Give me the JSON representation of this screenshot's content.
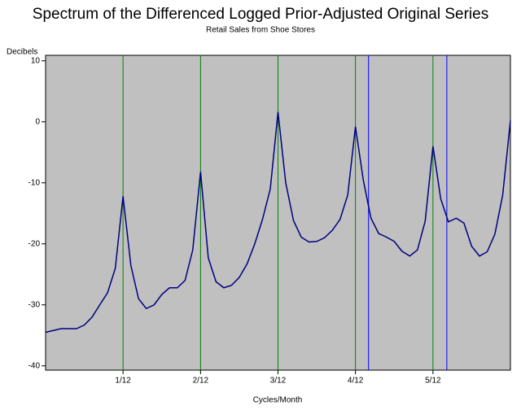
{
  "chart_data": {
    "type": "line",
    "title": "Spectrum of the Differenced Logged Prior-Adjusted Original Series",
    "subtitle": "Retail Sales from Shoe Stores",
    "y_label": "Decibels",
    "x_label": "Cycles/Month",
    "x": [
      0,
      0.0083,
      0.0167,
      0.025,
      0.0333,
      0.0417,
      0.05,
      0.0583,
      0.0667,
      0.075,
      0.0833,
      0.0917,
      0.1,
      0.1083,
      0.1167,
      0.125,
      0.1333,
      0.1417,
      0.15,
      0.1583,
      0.1667,
      0.175,
      0.1833,
      0.1917,
      0.2,
      0.2083,
      0.2167,
      0.225,
      0.2333,
      0.2417,
      0.25,
      0.2583,
      0.2667,
      0.275,
      0.2833,
      0.2917,
      0.3,
      0.3083,
      0.3167,
      0.325,
      0.3333,
      0.3417,
      0.35,
      0.3583,
      0.3667,
      0.375,
      0.3833,
      0.3917,
      0.4,
      0.4083,
      0.4167,
      0.425,
      0.4333,
      0.4417,
      0.45,
      0.4583,
      0.4667,
      0.475,
      0.4833,
      0.4917,
      0.5
    ],
    "series": [
      {
        "color": "#000080",
        "values": [
          -34.5,
          -34.2,
          -33.9,
          -33.9,
          -33.9,
          -33.3,
          -32,
          -30,
          -28,
          -24,
          -12.2,
          -23.5,
          -29,
          -30.6,
          -30,
          -28.3,
          -27.2,
          -27.2,
          -26,
          -21,
          -8.2,
          -22.3,
          -26.2,
          -27.2,
          -26.8,
          -25.5,
          -23.3,
          -20,
          -16,
          -11,
          1.6,
          -10,
          -16.2,
          -18.9,
          -19.7,
          -19.6,
          -19,
          -17.8,
          -16,
          -12,
          -0.8,
          -9.5,
          -15.8,
          -18.3,
          -18.9,
          -19.6,
          -21.2,
          -22,
          -21,
          -16.3,
          -4,
          -12.6,
          -16.4,
          -15.8,
          -16.6,
          -20.4,
          -22,
          -21.3,
          -18.4,
          -12,
          0.2
        ]
      }
    ],
    "reference_lines": [
      {
        "x": 0.0833,
        "color": "#008000"
      },
      {
        "x": 0.1667,
        "color": "#008000"
      },
      {
        "x": 0.25,
        "color": "#008000"
      },
      {
        "x": 0.3333,
        "color": "#008000"
      },
      {
        "x": 0.4167,
        "color": "#008000"
      },
      {
        "x": 0.3474,
        "color": "#0000ff"
      },
      {
        "x": 0.4316,
        "color": "#0000ff"
      }
    ],
    "xlim": [
      0,
      0.5
    ],
    "xticks": [
      {
        "value": 0.0833,
        "label": "1/12"
      },
      {
        "value": 0.1667,
        "label": "2/12"
      },
      {
        "value": 0.25,
        "label": "3/12"
      },
      {
        "value": 0.3333,
        "label": "4/12"
      },
      {
        "value": 0.4167,
        "label": "5/12"
      }
    ],
    "ylim": [
      -40.7,
      10.9
    ],
    "yticks": [
      -40,
      -30,
      -20,
      -10,
      0,
      10
    ],
    "plot_background": "#c0c0c0"
  }
}
